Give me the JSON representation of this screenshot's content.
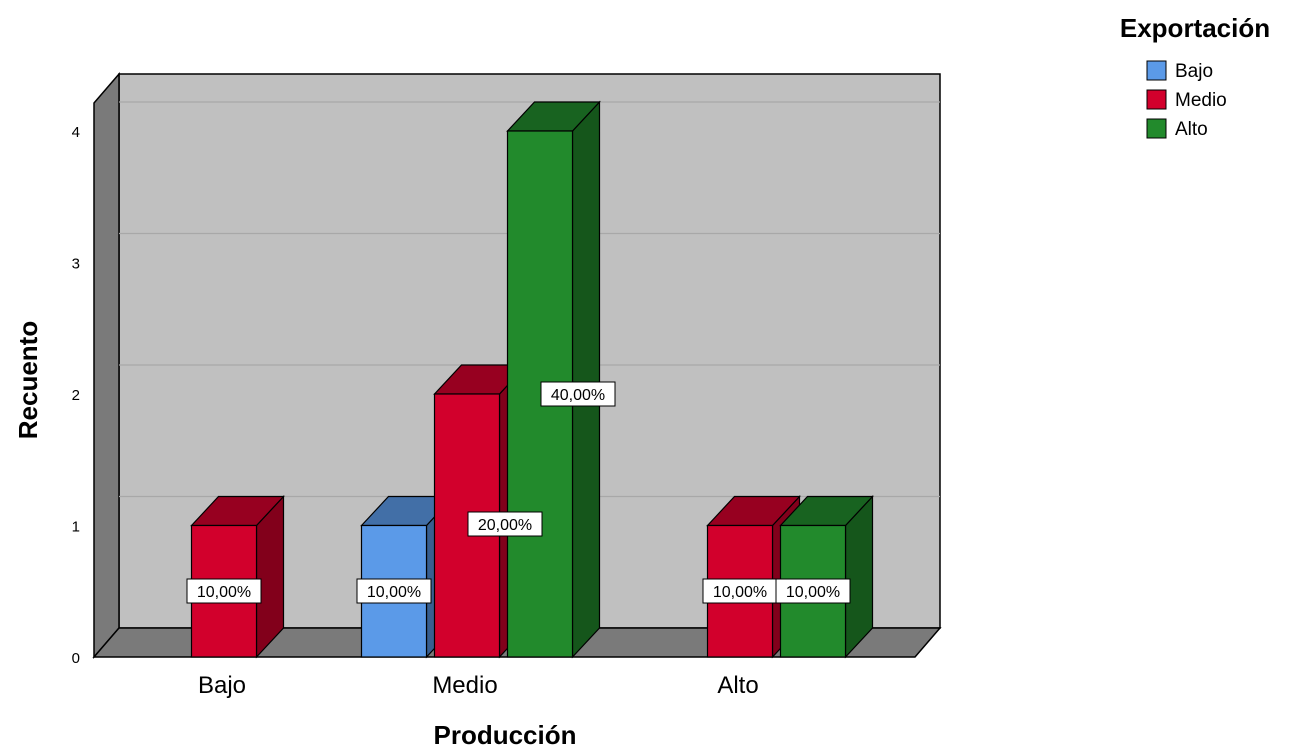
{
  "chart_data": {
    "type": "bar",
    "xlabel": "Producción",
    "ylabel": "Recuento",
    "categories": [
      "Bajo",
      "Medio",
      "Alto"
    ],
    "ylim": [
      0,
      4
    ],
    "yticks": [
      "0",
      "1",
      "2",
      "3",
      "4"
    ],
    "grid": true,
    "legend": {
      "title": "Exportación",
      "position": "top-right"
    },
    "series": [
      {
        "name": "Bajo",
        "color": "#5b9ae8",
        "values": [
          0,
          1,
          0
        ],
        "labels": [
          "",
          "10,00%",
          ""
        ]
      },
      {
        "name": "Medio",
        "color": "#d2002c",
        "values": [
          1,
          2,
          1
        ],
        "labels": [
          "10,00%",
          "20,00%",
          "10,00%"
        ]
      },
      {
        "name": "Alto",
        "color": "#228a2c",
        "values": [
          0,
          4,
          1
        ],
        "labels": [
          "",
          "40,00%",
          "10,00%"
        ]
      }
    ]
  }
}
